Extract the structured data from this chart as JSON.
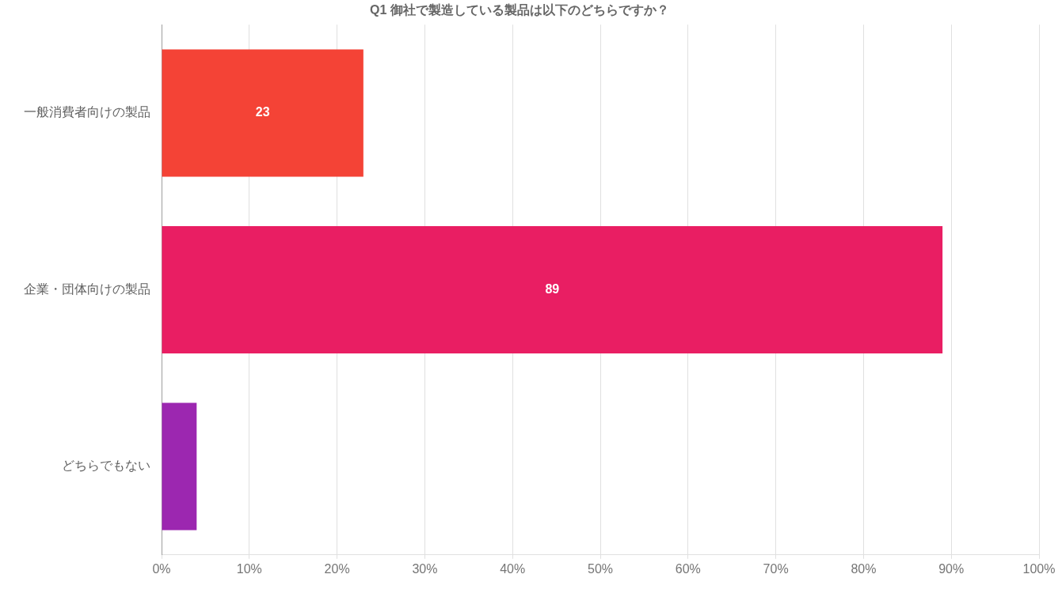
{
  "chart_data": {
    "type": "bar",
    "orientation": "horizontal",
    "title": "Q1 御社で製造している製品は以下のどちらですか？",
    "categories": [
      "一般消費者向けの製品",
      "企業・団体向けの製品",
      "どちらでもない"
    ],
    "values": [
      23,
      89,
      4
    ],
    "colors": [
      "#f44336",
      "#e91e63",
      "#9c27b0"
    ],
    "value_labels": [
      "23",
      "89",
      null
    ],
    "xlim": [
      0,
      100
    ],
    "xticks": [
      {
        "value": 0,
        "label": "0%"
      },
      {
        "value": 10,
        "label": "10%"
      },
      {
        "value": 20,
        "label": "20%"
      },
      {
        "value": 30,
        "label": "30%"
      },
      {
        "value": 40,
        "label": "40%"
      },
      {
        "value": 50,
        "label": "50%"
      },
      {
        "value": 60,
        "label": "60%"
      },
      {
        "value": 70,
        "label": "70%"
      },
      {
        "value": 80,
        "label": "80%"
      },
      {
        "value": 90,
        "label": "90%"
      },
      {
        "value": 100,
        "label": "100%"
      }
    ],
    "grid": "x"
  }
}
